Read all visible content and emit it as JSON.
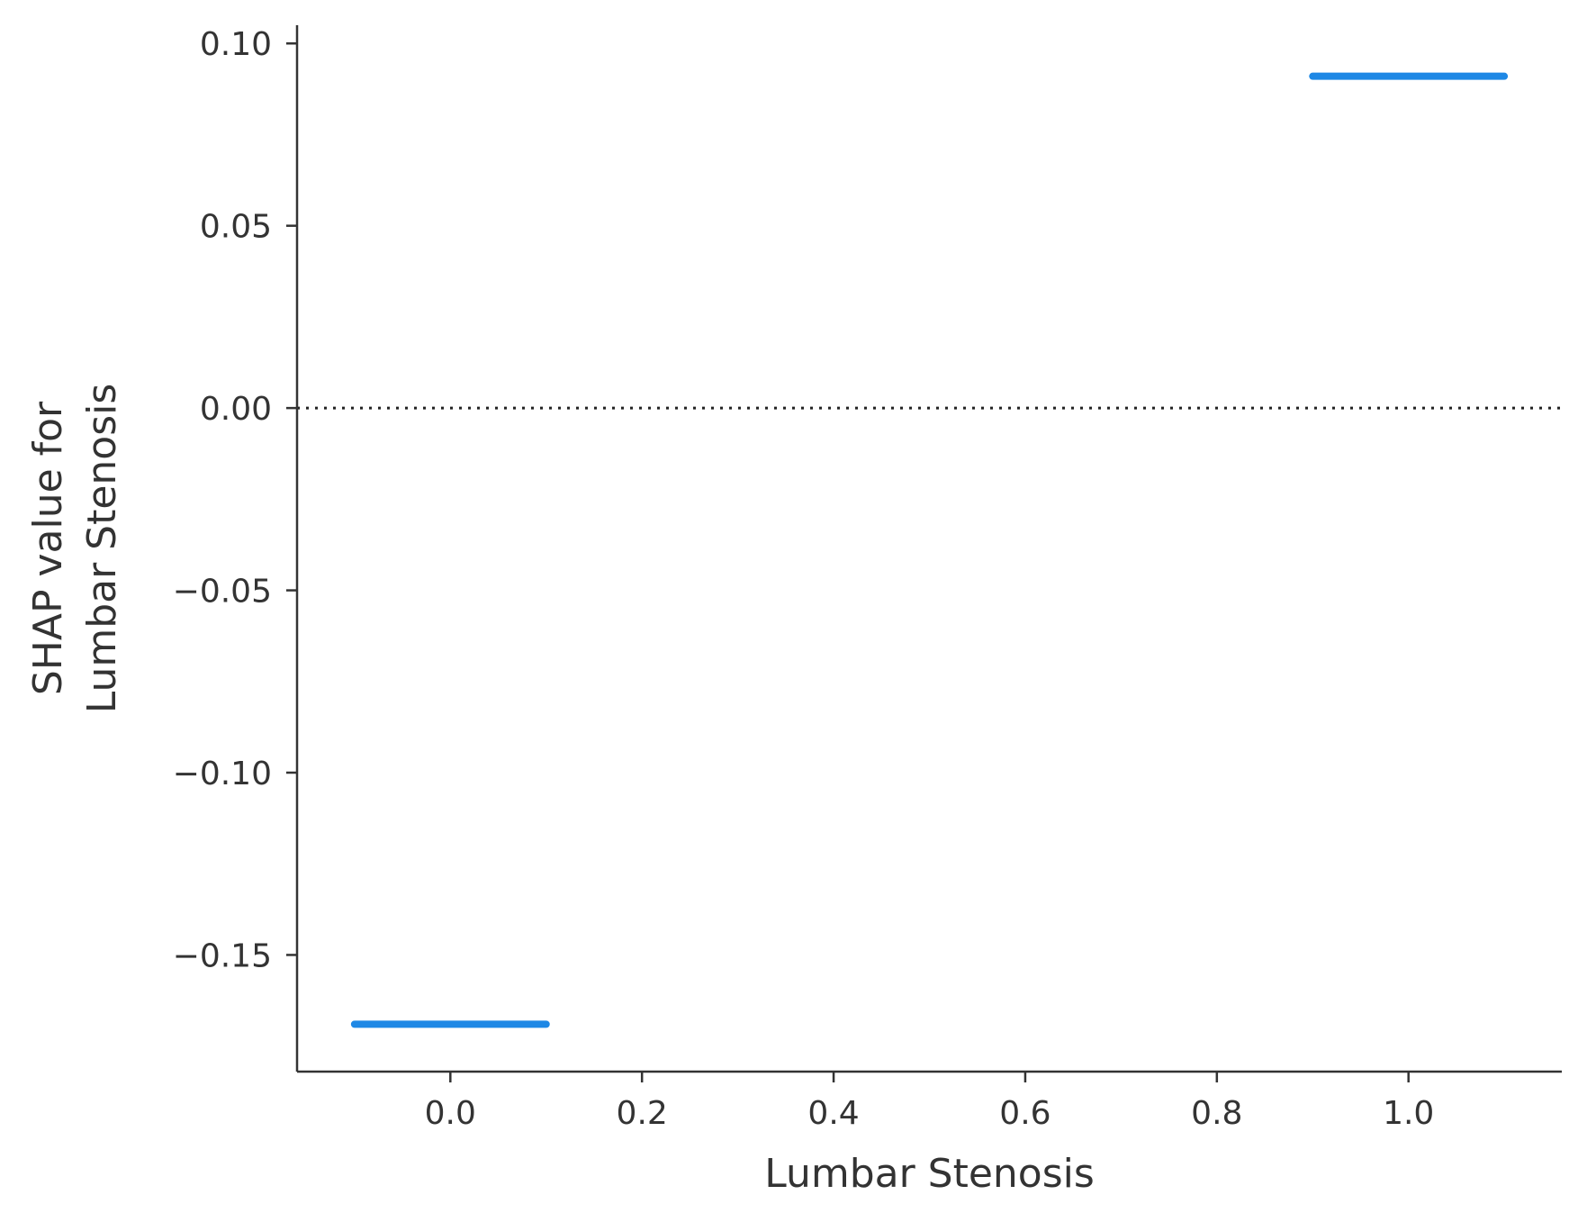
{
  "chart_data": {
    "type": "line",
    "title": "",
    "xlabel": "Lumbar Stenosis",
    "ylabel_lines": [
      "SHAP value for",
      "Lumbar Stenosis"
    ],
    "xlim": [
      -0.16,
      1.16
    ],
    "ylim": [
      -0.182,
      0.105
    ],
    "x_ticks": [
      0.0,
      0.2,
      0.4,
      0.6,
      0.8,
      1.0
    ],
    "x_tick_labels": [
      "0.0",
      "0.2",
      "0.4",
      "0.6",
      "0.8",
      "1.0"
    ],
    "y_ticks": [
      0.1,
      0.05,
      0.0,
      -0.05,
      -0.1,
      -0.15
    ],
    "y_tick_labels": [
      "0.10",
      "0.05",
      "0.00",
      "−0.05",
      "−0.10",
      "−0.15"
    ],
    "reference_line": {
      "y": 0.0,
      "style": "dotted"
    },
    "segments": [
      {
        "x": [
          -0.1,
          0.1
        ],
        "y": [
          -0.169,
          -0.169
        ]
      },
      {
        "x": [
          0.9,
          1.1
        ],
        "y": [
          0.091,
          0.091
        ]
      }
    ],
    "line_color": "#1E88E5",
    "grid": false,
    "legend": "none"
  }
}
